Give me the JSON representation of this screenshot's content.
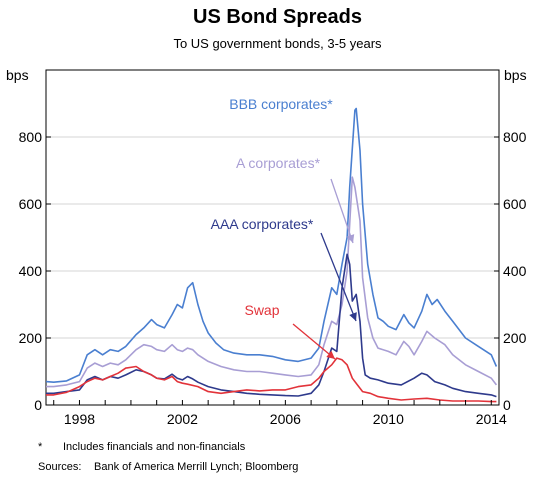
{
  "chart_data": {
    "type": "line",
    "title": "US Bond Spreads",
    "subtitle": "To US government bonds, 3-5 years",
    "ylabel_left": "bps",
    "ylabel_right": "bps",
    "ylim": [
      0,
      1000
    ],
    "yticks": [
      0,
      200,
      400,
      600,
      800
    ],
    "xlim": [
      1996.7,
      2014.3
    ],
    "xticks": [
      1998,
      2002,
      2006,
      2010,
      2014
    ],
    "grid": true,
    "legend": "inline labels",
    "footnote_marker": "*",
    "footnote": "Includes financials and non-financials",
    "sources_label": "Sources:",
    "sources": "Bank of America Merrill Lynch; Bloomberg",
    "series": [
      {
        "name": "BBB corporates*",
        "color": "#4a7fd0",
        "points": [
          [
            1996.7,
            70
          ],
          [
            1997.0,
            68
          ],
          [
            1997.5,
            72
          ],
          [
            1998.0,
            90
          ],
          [
            1998.3,
            150
          ],
          [
            1998.6,
            165
          ],
          [
            1998.9,
            150
          ],
          [
            1999.2,
            165
          ],
          [
            1999.5,
            160
          ],
          [
            1999.8,
            175
          ],
          [
            2000.2,
            210
          ],
          [
            2000.5,
            230
          ],
          [
            2000.8,
            255
          ],
          [
            2001.0,
            240
          ],
          [
            2001.3,
            230
          ],
          [
            2001.6,
            270
          ],
          [
            2001.8,
            300
          ],
          [
            2002.0,
            290
          ],
          [
            2002.2,
            350
          ],
          [
            2002.4,
            365
          ],
          [
            2002.6,
            300
          ],
          [
            2002.8,
            250
          ],
          [
            2003.0,
            215
          ],
          [
            2003.3,
            185
          ],
          [
            2003.6,
            165
          ],
          [
            2004.0,
            155
          ],
          [
            2004.5,
            150
          ],
          [
            2005.0,
            150
          ],
          [
            2005.5,
            145
          ],
          [
            2006.0,
            135
          ],
          [
            2006.5,
            130
          ],
          [
            2007.0,
            140
          ],
          [
            2007.3,
            170
          ],
          [
            2007.5,
            250
          ],
          [
            2007.8,
            350
          ],
          [
            2008.0,
            330
          ],
          [
            2008.2,
            420
          ],
          [
            2008.4,
            500
          ],
          [
            2008.5,
            650
          ],
          [
            2008.7,
            880
          ],
          [
            2008.75,
            885
          ],
          [
            2008.9,
            760
          ],
          [
            2009.0,
            600
          ],
          [
            2009.2,
            420
          ],
          [
            2009.4,
            330
          ],
          [
            2009.6,
            260
          ],
          [
            2009.8,
            250
          ],
          [
            2010.0,
            235
          ],
          [
            2010.3,
            225
          ],
          [
            2010.6,
            270
          ],
          [
            2010.8,
            245
          ],
          [
            2011.0,
            230
          ],
          [
            2011.3,
            280
          ],
          [
            2011.5,
            330
          ],
          [
            2011.7,
            300
          ],
          [
            2011.9,
            315
          ],
          [
            2012.2,
            280
          ],
          [
            2012.5,
            250
          ],
          [
            2013.0,
            200
          ],
          [
            2013.5,
            175
          ],
          [
            2014.0,
            150
          ],
          [
            2014.2,
            115
          ]
        ]
      },
      {
        "name": "A corporates*",
        "color": "#a89ed4",
        "points": [
          [
            1996.7,
            55
          ],
          [
            1997.0,
            55
          ],
          [
            1997.5,
            60
          ],
          [
            1998.0,
            70
          ],
          [
            1998.3,
            110
          ],
          [
            1998.6,
            125
          ],
          [
            1998.9,
            115
          ],
          [
            1999.2,
            125
          ],
          [
            1999.5,
            120
          ],
          [
            1999.8,
            135
          ],
          [
            2000.2,
            165
          ],
          [
            2000.5,
            180
          ],
          [
            2000.8,
            175
          ],
          [
            2001.0,
            165
          ],
          [
            2001.3,
            160
          ],
          [
            2001.6,
            180
          ],
          [
            2001.8,
            165
          ],
          [
            2002.0,
            160
          ],
          [
            2002.2,
            170
          ],
          [
            2002.4,
            165
          ],
          [
            2002.6,
            150
          ],
          [
            2003.0,
            130
          ],
          [
            2003.5,
            115
          ],
          [
            2004.0,
            105
          ],
          [
            2004.5,
            100
          ],
          [
            2005.0,
            100
          ],
          [
            2005.5,
            95
          ],
          [
            2006.0,
            90
          ],
          [
            2006.5,
            85
          ],
          [
            2007.0,
            90
          ],
          [
            2007.3,
            120
          ],
          [
            2007.5,
            180
          ],
          [
            2007.8,
            250
          ],
          [
            2008.0,
            240
          ],
          [
            2008.2,
            300
          ],
          [
            2008.4,
            400
          ],
          [
            2008.6,
            680
          ],
          [
            2008.7,
            650
          ],
          [
            2008.9,
            550
          ],
          [
            2009.0,
            380
          ],
          [
            2009.2,
            260
          ],
          [
            2009.4,
            200
          ],
          [
            2009.6,
            170
          ],
          [
            2010.0,
            160
          ],
          [
            2010.3,
            150
          ],
          [
            2010.6,
            190
          ],
          [
            2010.8,
            175
          ],
          [
            2011.0,
            150
          ],
          [
            2011.3,
            190
          ],
          [
            2011.5,
            220
          ],
          [
            2011.8,
            200
          ],
          [
            2012.2,
            180
          ],
          [
            2012.5,
            150
          ],
          [
            2013.0,
            120
          ],
          [
            2013.5,
            100
          ],
          [
            2014.0,
            80
          ],
          [
            2014.2,
            60
          ]
        ]
      },
      {
        "name": "AAA corporates*",
        "color": "#2e3a8c",
        "points": [
          [
            1996.7,
            35
          ],
          [
            1997.0,
            35
          ],
          [
            1997.5,
            40
          ],
          [
            1998.0,
            45
          ],
          [
            1998.3,
            75
          ],
          [
            1998.6,
            85
          ],
          [
            1998.9,
            75
          ],
          [
            1999.2,
            85
          ],
          [
            1999.5,
            80
          ],
          [
            1999.8,
            90
          ],
          [
            2000.2,
            105
          ],
          [
            2000.5,
            100
          ],
          [
            2000.8,
            90
          ],
          [
            2001.0,
            80
          ],
          [
            2001.3,
            78
          ],
          [
            2001.6,
            92
          ],
          [
            2001.8,
            80
          ],
          [
            2002.0,
            75
          ],
          [
            2002.2,
            85
          ],
          [
            2002.4,
            78
          ],
          [
            2002.6,
            68
          ],
          [
            2003.0,
            55
          ],
          [
            2003.5,
            45
          ],
          [
            2004.0,
            40
          ],
          [
            2004.5,
            35
          ],
          [
            2005.0,
            32
          ],
          [
            2005.5,
            30
          ],
          [
            2006.0,
            28
          ],
          [
            2006.5,
            27
          ],
          [
            2007.0,
            35
          ],
          [
            2007.3,
            60
          ],
          [
            2007.5,
            100
          ],
          [
            2007.8,
            170
          ],
          [
            2008.0,
            160
          ],
          [
            2008.2,
            350
          ],
          [
            2008.4,
            450
          ],
          [
            2008.5,
            420
          ],
          [
            2008.6,
            310
          ],
          [
            2008.75,
            330
          ],
          [
            2008.9,
            250
          ],
          [
            2009.0,
            140
          ],
          [
            2009.1,
            90
          ],
          [
            2009.3,
            80
          ],
          [
            2009.6,
            75
          ],
          [
            2010.0,
            65
          ],
          [
            2010.5,
            60
          ],
          [
            2011.0,
            80
          ],
          [
            2011.3,
            95
          ],
          [
            2011.5,
            90
          ],
          [
            2011.8,
            70
          ],
          [
            2012.2,
            60
          ],
          [
            2012.5,
            50
          ],
          [
            2013.0,
            40
          ],
          [
            2013.5,
            35
          ],
          [
            2014.0,
            30
          ],
          [
            2014.2,
            25
          ]
        ]
      },
      {
        "name": "Swap",
        "color": "#e2333a",
        "points": [
          [
            1996.7,
            30
          ],
          [
            1997.0,
            30
          ],
          [
            1997.5,
            38
          ],
          [
            1998.0,
            55
          ],
          [
            1998.3,
            70
          ],
          [
            1998.6,
            80
          ],
          [
            1998.9,
            75
          ],
          [
            1999.2,
            85
          ],
          [
            1999.5,
            95
          ],
          [
            1999.8,
            110
          ],
          [
            2000.2,
            115
          ],
          [
            2000.5,
            100
          ],
          [
            2000.8,
            90
          ],
          [
            2001.0,
            80
          ],
          [
            2001.3,
            75
          ],
          [
            2001.6,
            85
          ],
          [
            2001.8,
            70
          ],
          [
            2002.0,
            65
          ],
          [
            2002.2,
            62
          ],
          [
            2002.6,
            55
          ],
          [
            2003.0,
            40
          ],
          [
            2003.5,
            35
          ],
          [
            2004.0,
            40
          ],
          [
            2004.5,
            45
          ],
          [
            2005.0,
            42
          ],
          [
            2005.5,
            45
          ],
          [
            2006.0,
            45
          ],
          [
            2006.5,
            55
          ],
          [
            2007.0,
            60
          ],
          [
            2007.3,
            80
          ],
          [
            2007.5,
            100
          ],
          [
            2007.8,
            120
          ],
          [
            2008.0,
            140
          ],
          [
            2008.2,
            135
          ],
          [
            2008.4,
            120
          ],
          [
            2008.6,
            80
          ],
          [
            2008.8,
            60
          ],
          [
            2009.0,
            40
          ],
          [
            2009.3,
            35
          ],
          [
            2009.6,
            25
          ],
          [
            2010.0,
            20
          ],
          [
            2010.5,
            15
          ],
          [
            2011.0,
            18
          ],
          [
            2011.5,
            20
          ],
          [
            2012.0,
            15
          ],
          [
            2012.5,
            12
          ],
          [
            2013.0,
            12
          ],
          [
            2013.5,
            12
          ],
          [
            2014.0,
            10
          ],
          [
            2014.2,
            10
          ]
        ]
      }
    ],
    "annotations": [
      {
        "text": "BBB corporates*",
        "series": 0
      },
      {
        "text": "A corporates*",
        "series": 1
      },
      {
        "text": "AAA corporates*",
        "series": 2
      },
      {
        "text": "Swap",
        "series": 3
      }
    ]
  }
}
